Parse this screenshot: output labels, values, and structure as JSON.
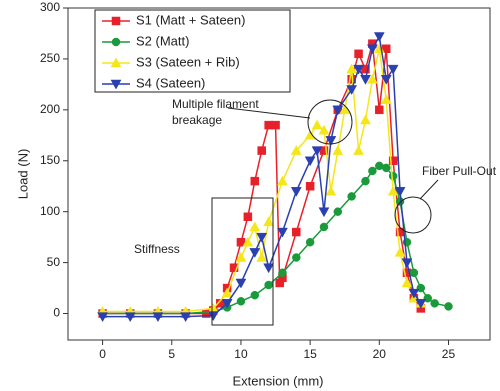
{
  "chart_data": {
    "type": "line",
    "xlabel": "Extension (mm)",
    "ylabel": "Load (N)",
    "xlim": [
      -2.5,
      28
    ],
    "ylim": [
      -26,
      300
    ],
    "xticks": [
      0,
      5,
      10,
      15,
      20,
      25
    ],
    "yticks": [
      0,
      50,
      100,
      150,
      200,
      250,
      300
    ],
    "legend": "upper left",
    "series": [
      {
        "name": "S1 (Matt + Sateen)",
        "color": "#e8202a",
        "marker": "square",
        "x": [
          0,
          2,
          4,
          6,
          7.5,
          8,
          8.5,
          9,
          9.5,
          10,
          10.5,
          11,
          11.5,
          12,
          12.5,
          12.8,
          13,
          14,
          15,
          16,
          17,
          18,
          18.5,
          19,
          19.5,
          20,
          20.5,
          21,
          21.5,
          22,
          22.5,
          23
        ],
        "values": [
          0,
          0,
          0,
          0,
          0,
          3,
          10,
          25,
          45,
          70,
          95,
          130,
          160,
          185,
          185,
          30,
          35,
          80,
          125,
          160,
          200,
          230,
          255,
          240,
          265,
          200,
          260,
          150,
          80,
          40,
          15,
          5
        ]
      },
      {
        "name": "S2 (Matt)",
        "color": "#1a9a3a",
        "marker": "circle",
        "x": [
          0,
          2,
          4,
          6,
          8,
          9,
          10,
          11,
          12,
          13,
          14,
          15,
          16,
          17,
          18,
          19,
          19.5,
          20,
          20.5,
          21,
          21.5,
          22,
          22.5,
          23,
          23.5,
          24,
          25
        ],
        "values": [
          0,
          0,
          0,
          0,
          2,
          6,
          12,
          18,
          28,
          40,
          55,
          70,
          85,
          100,
          115,
          130,
          140,
          145,
          143,
          135,
          110,
          70,
          40,
          25,
          15,
          10,
          7
        ]
      },
      {
        "name": "S3 (Sateen + Rib)",
        "color": "#f5e61a",
        "marker": "triangle-up",
        "x": [
          0,
          2,
          4,
          6,
          8,
          9,
          10,
          10.5,
          11,
          11.5,
          12,
          13,
          14,
          15,
          15.5,
          16,
          16.5,
          17,
          17.5,
          18,
          18.5,
          19,
          19.5,
          20,
          20.5,
          21,
          21.5,
          22,
          22.5,
          23
        ],
        "values": [
          2,
          2,
          2,
          2,
          5,
          20,
          55,
          70,
          85,
          55,
          90,
          130,
          160,
          175,
          185,
          180,
          120,
          160,
          200,
          240,
          160,
          190,
          230,
          260,
          210,
          120,
          60,
          30,
          15,
          10
        ]
      },
      {
        "name": "S4 (Sateen)",
        "color": "#2a3fb0",
        "marker": "triangle-down",
        "x": [
          0,
          2,
          4,
          6,
          8,
          9,
          10,
          11,
          11.5,
          12,
          13,
          14,
          15,
          15.5,
          16,
          16.5,
          17,
          18,
          18.5,
          19,
          19.5,
          20,
          20.5,
          21,
          21.5,
          22,
          22.5,
          23
        ],
        "values": [
          -3,
          -3,
          -3,
          -3,
          -2,
          10,
          30,
          60,
          75,
          45,
          80,
          120,
          150,
          160,
          100,
          170,
          200,
          220,
          240,
          230,
          260,
          272,
          230,
          240,
          120,
          50,
          20,
          10
        ]
      }
    ],
    "annotations": [
      {
        "text": [
          "Multiple filament",
          "breakage"
        ]
      },
      {
        "text": [
          "Fiber Pull-Out"
        ]
      },
      {
        "text": [
          "Stiffness"
        ]
      }
    ]
  }
}
